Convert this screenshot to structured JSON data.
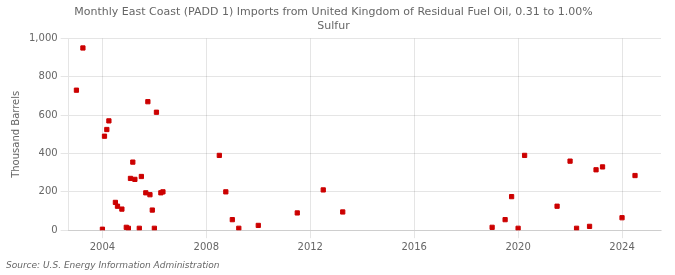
{
  "chart_data": {
    "type": "scatter",
    "title": "Monthly East Coast (PADD 1) Imports from United Kingdom of Residual Fuel Oil, 0.31 to 1.00%\nSulfur",
    "ylabel": "Thousand Barrels",
    "annotations": [
      "Source: U.S. Energy Information Administration"
    ],
    "color": "#cc0000",
    "marker": "square",
    "grid": true,
    "xlim": [
      2002.7,
      2025.5
    ],
    "ylim": [
      0,
      1000
    ],
    "xticks": [
      2004,
      2008,
      2012,
      2016,
      2020,
      2024
    ],
    "yticks": [
      0,
      200,
      400,
      600,
      800,
      {
        "value": 1000,
        "label": "1,000"
      }
    ],
    "x": [
      2003.0,
      2003.25,
      2004.0,
      2004.08,
      2004.17,
      2004.25,
      2004.5,
      2004.58,
      2004.75,
      2004.92,
      2005.0,
      2005.08,
      2005.17,
      2005.25,
      2005.42,
      2005.5,
      2005.67,
      2005.75,
      2005.83,
      2005.92,
      2006.0,
      2006.08,
      2006.25,
      2006.33,
      2008.5,
      2008.75,
      2009.0,
      2009.25,
      2010.0,
      2011.5,
      2012.5,
      2013.25,
      2019.0,
      2019.5,
      2019.75,
      2020.0,
      2020.25,
      2021.5,
      2022.0,
      2022.25,
      2022.75,
      2023.0,
      2023.25,
      2024.0,
      2024.5
    ],
    "values": [
      730,
      950,
      5,
      490,
      525,
      570,
      145,
      125,
      110,
      15,
      10,
      270,
      355,
      265,
      10,
      280,
      195,
      670,
      185,
      105,
      10,
      615,
      195,
      200,
      390,
      200,
      55,
      10,
      25,
      90,
      210,
      95,
      15,
      55,
      175,
      10,
      390,
      125,
      360,
      10,
      20,
      315,
      330,
      65,
      285
    ]
  }
}
